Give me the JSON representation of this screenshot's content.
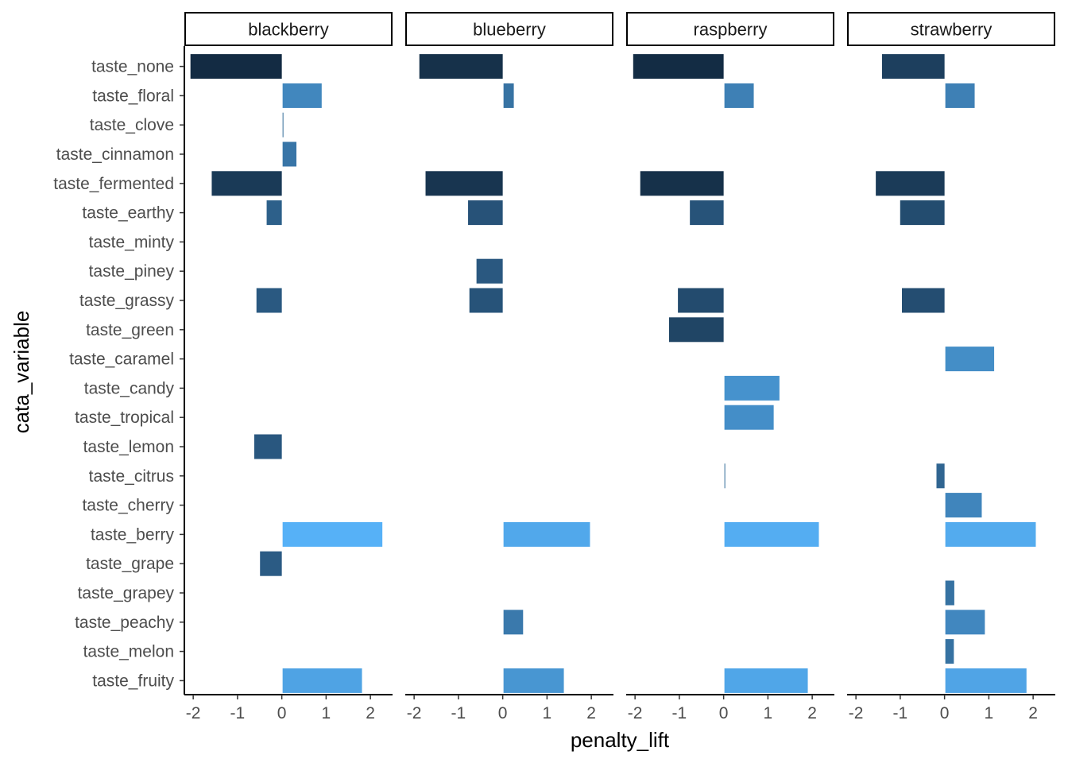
{
  "chart_data": {
    "type": "bar",
    "orientation": "horizontal",
    "facet_by": "berry",
    "xlabel": "penalty_lift",
    "ylabel": "cata_variable",
    "xlim": [
      -2.2,
      2.5
    ],
    "x_ticks": [
      -2,
      -1,
      0,
      1,
      2
    ],
    "x_tick_labels": [
      "-2",
      "-1",
      "0",
      "1",
      "2"
    ],
    "grid": false,
    "legend": "none",
    "color_scale": {
      "low": "#132B43",
      "high": "#56B1F7"
    },
    "categories": [
      "taste_none",
      "taste_floral",
      "taste_clove",
      "taste_cinnamon",
      "taste_fermented",
      "taste_earthy",
      "taste_minty",
      "taste_piney",
      "taste_grassy",
      "taste_green",
      "taste_caramel",
      "taste_candy",
      "taste_tropical",
      "taste_lemon",
      "taste_citrus",
      "taste_cherry",
      "taste_berry",
      "taste_grape",
      "taste_grapey",
      "taste_peachy",
      "taste_melon",
      "taste_fruity"
    ],
    "panels": [
      {
        "name": "blackberry",
        "values": {
          "taste_none": -2.08,
          "taste_floral": 0.9,
          "taste_clove": 0.02,
          "taste_cinnamon": 0.33,
          "taste_fermented": -1.6,
          "taste_earthy": -0.36,
          "taste_grassy": -0.59,
          "taste_lemon": -0.64,
          "taste_berry": 2.27,
          "taste_grape": -0.51,
          "taste_fruity": 1.81
        }
      },
      {
        "name": "blueberry",
        "values": {
          "taste_none": -1.9,
          "taste_floral": 0.25,
          "taste_fermented": -1.76,
          "taste_earthy": -0.8,
          "taste_piney": -0.61,
          "taste_grassy": -0.77,
          "taste_berry": 1.97,
          "taste_peachy": 0.46,
          "taste_fruity": 1.38
        }
      },
      {
        "name": "raspberry",
        "values": {
          "taste_none": -2.06,
          "taste_floral": 0.68,
          "taste_fermented": -1.9,
          "taste_earthy": -0.78,
          "taste_grassy": -1.05,
          "taste_green": -1.25,
          "taste_candy": 1.26,
          "taste_tropical": 1.13,
          "taste_citrus": 0.03,
          "taste_berry": 2.15,
          "taste_fruity": 1.9
        }
      },
      {
        "name": "strawberry",
        "values": {
          "taste_none": -1.43,
          "taste_floral": 0.68,
          "taste_fermented": -1.57,
          "taste_earthy": -1.02,
          "taste_grassy": -0.98,
          "taste_caramel": 1.12,
          "taste_citrus": -0.2,
          "taste_cherry": 0.84,
          "taste_berry": 2.06,
          "taste_grapey": 0.22,
          "taste_peachy": 0.91,
          "taste_melon": 0.21,
          "taste_fruity": 1.85
        }
      }
    ]
  }
}
